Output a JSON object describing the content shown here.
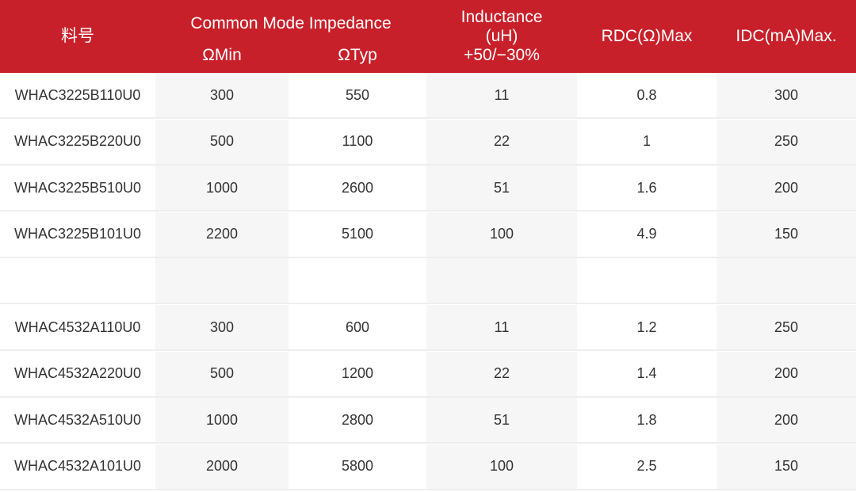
{
  "header": {
    "part_no": "料号",
    "impedance_group": "Common Mode Impedance",
    "impedance_min": "ΩMin",
    "impedance_typ": "ΩTyp",
    "inductance_line1": "Inductance",
    "inductance_line2": "(uH)",
    "inductance_line3": "+50/−30%",
    "rdc": "RDC(Ω)Max",
    "idc": "IDC(mA)Max."
  },
  "rows": [
    {
      "part": "WHAC3225B110U0",
      "min": "300",
      "typ": "550",
      "ind": "11",
      "rdc": "0.8",
      "idc": "300"
    },
    {
      "part": "WHAC3225B220U0",
      "min": "500",
      "typ": "1100",
      "ind": "22",
      "rdc": "1",
      "idc": "250"
    },
    {
      "part": "WHAC3225B510U0",
      "min": "1000",
      "typ": "2600",
      "ind": "51",
      "rdc": "1.6",
      "idc": "200"
    },
    {
      "part": "WHAC3225B101U0",
      "min": "2200",
      "typ": "5100",
      "ind": "100",
      "rdc": "4.9",
      "idc": "150"
    },
    {
      "part": "",
      "min": "",
      "typ": "",
      "ind": "",
      "rdc": "",
      "idc": ""
    },
    {
      "part": "WHAC4532A110U0",
      "min": "300",
      "typ": "600",
      "ind": "11",
      "rdc": "1.2",
      "idc": "250"
    },
    {
      "part": "WHAC4532A220U0",
      "min": "500",
      "typ": "1200",
      "ind": "22",
      "rdc": "1.4",
      "idc": "200"
    },
    {
      "part": "WHAC4532A510U0",
      "min": "1000",
      "typ": "2800",
      "ind": "51",
      "rdc": "1.8",
      "idc": "200"
    },
    {
      "part": "WHAC4532A101U0",
      "min": "2000",
      "typ": "5800",
      "ind": "100",
      "rdc": "2.5",
      "idc": "150"
    }
  ],
  "colors": {
    "header_bg": "#c8202a",
    "header_text": "#ffffff",
    "shade": "#f6f6f6",
    "body_text": "#333333"
  }
}
